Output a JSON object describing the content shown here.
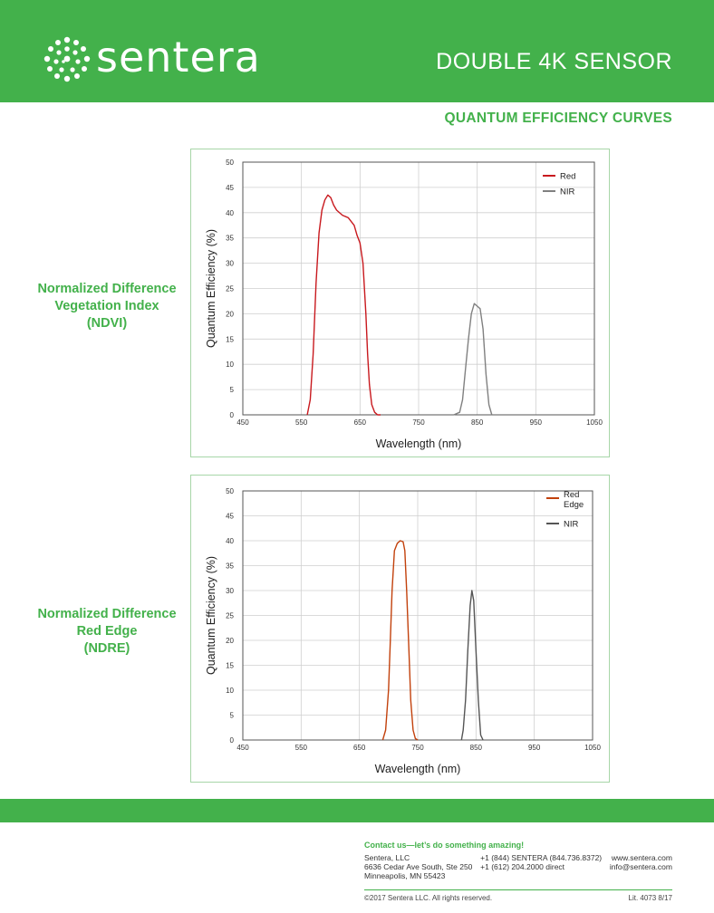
{
  "brand": {
    "name": "sentera"
  },
  "header": {
    "title": "DOUBLE 4K  SENSOR"
  },
  "section": {
    "title": "QUANTUM EFFICIENCY CURVES"
  },
  "labels": {
    "ndvi": [
      "Normalized Difference",
      "Vegetation Index",
      "(NDVI)"
    ],
    "ndre": [
      "Normalized Difference",
      "Red Edge",
      "(NDRE)"
    ]
  },
  "colors": {
    "brand_green": "#43b14b",
    "red": "#c8191e",
    "red_edge": "#c2410c",
    "nir": "#808080",
    "nir_dark": "#555555"
  },
  "footer": {
    "contact_heading": "Contact us—let’s do something amazing!",
    "company": "Sentera, LLC",
    "address1": "6636 Cedar Ave South, Ste 250",
    "address2": "Minneapolis, MN 55423",
    "phone1": "+1 (844) SENTERA (844.736.8372)",
    "phone2": "+1 (612) 204.2000 direct",
    "web": "www.sentera.com",
    "email": "info@sentera.com",
    "copyright": "©2017 Sentera LLC. All rights reserved.",
    "lit": "Lit. 4073 8/17"
  },
  "chart_data": [
    {
      "type": "line",
      "title": "",
      "xlabel": "Wavelength (nm)",
      "ylabel": "Quantum Efficiency (%)",
      "xlim": [
        450,
        1050
      ],
      "ylim": [
        0,
        50
      ],
      "xticks": [
        450,
        550,
        650,
        750,
        850,
        950,
        1050
      ],
      "yticks": [
        0,
        5,
        10,
        15,
        20,
        25,
        30,
        35,
        40,
        45,
        50
      ],
      "grid": true,
      "legend": "top-right",
      "series": [
        {
          "name": "Red",
          "color": "#c8191e",
          "x": [
            560,
            565,
            570,
            575,
            580,
            585,
            590,
            595,
            600,
            605,
            610,
            620,
            630,
            640,
            645,
            650,
            655,
            660,
            663,
            666,
            670,
            675,
            680,
            685
          ],
          "y": [
            0,
            3,
            12,
            26,
            36,
            40.5,
            42.5,
            43.5,
            43,
            41.5,
            40.5,
            39.5,
            39,
            37.5,
            35.5,
            34,
            30,
            20,
            12,
            6,
            2,
            0.5,
            0,
            0
          ]
        },
        {
          "name": "NIR",
          "color": "#808080",
          "x": [
            810,
            820,
            825,
            830,
            835,
            840,
            845,
            850,
            855,
            860,
            865,
            870,
            875
          ],
          "y": [
            0,
            0.5,
            3,
            9,
            15,
            20,
            22,
            21.5,
            21,
            17,
            8,
            2,
            0
          ]
        }
      ]
    },
    {
      "type": "line",
      "title": "",
      "xlabel": "Wavelength (nm)",
      "ylabel": "Quantum Efficiency (%)",
      "xlim": [
        450,
        1050
      ],
      "ylim": [
        0,
        50
      ],
      "xticks": [
        450,
        550,
        650,
        750,
        850,
        950,
        1050
      ],
      "yticks": [
        0,
        5,
        10,
        15,
        20,
        25,
        30,
        35,
        40,
        45,
        50
      ],
      "grid": true,
      "legend": "top-right",
      "series": [
        {
          "name": "Red Edge",
          "color": "#c2410c",
          "x": [
            690,
            695,
            700,
            703,
            706,
            710,
            715,
            720,
            725,
            728,
            731,
            735,
            738,
            742,
            746,
            750
          ],
          "y": [
            0,
            2,
            10,
            20,
            30,
            38,
            39.5,
            40,
            39.8,
            38,
            30,
            18,
            8,
            2,
            0.3,
            0
          ]
        },
        {
          "name": "NIR",
          "color": "#555555",
          "x": [
            825,
            828,
            832,
            836,
            840,
            843,
            846,
            850,
            854,
            858,
            862
          ],
          "y": [
            0,
            2,
            8,
            18,
            27,
            30,
            28,
            18,
            8,
            1,
            0
          ]
        }
      ]
    }
  ]
}
